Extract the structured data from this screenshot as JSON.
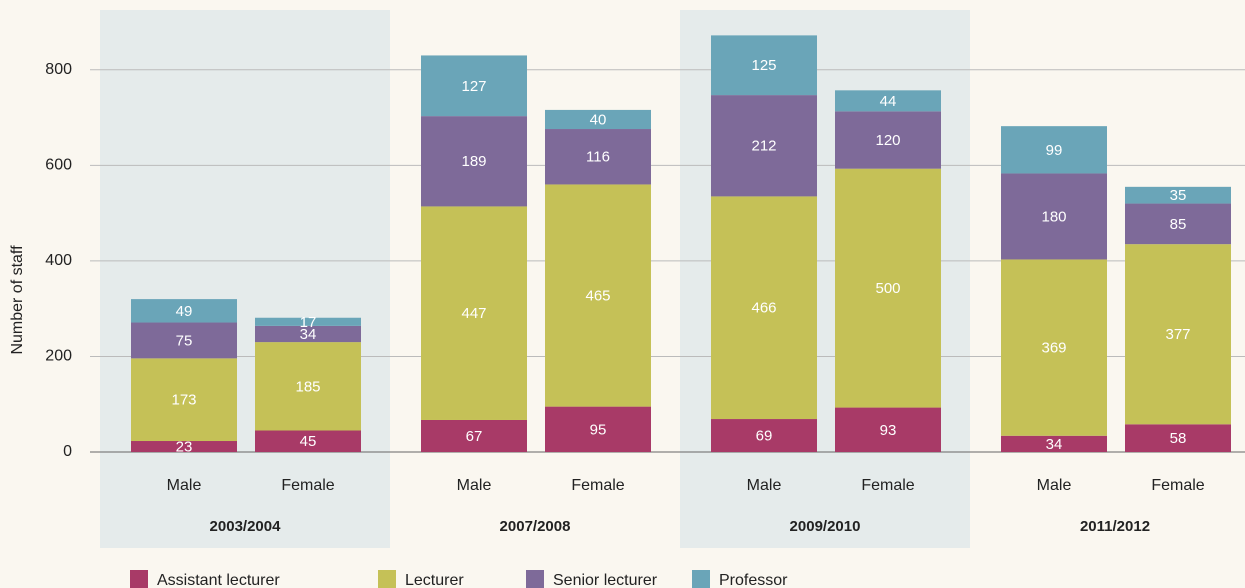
{
  "chart_data": {
    "type": "stacked_bar",
    "y_label": "Number of staff",
    "groups": [
      {
        "name": "2003/2004",
        "categories": [
          "Male",
          "Female"
        ]
      },
      {
        "name": "2007/2008",
        "categories": [
          "Male",
          "Female"
        ]
      },
      {
        "name": "2009/2010",
        "categories": [
          "Male",
          "Female"
        ]
      },
      {
        "name": "2011/2012",
        "categories": [
          "Male",
          "Female"
        ]
      }
    ],
    "series": [
      {
        "name": "Assistant lecturer",
        "color": "#a83a67",
        "values": [
          23,
          45,
          67,
          95,
          69,
          93,
          34,
          58
        ]
      },
      {
        "name": "Lecturer",
        "color": "#c5c157",
        "values": [
          173,
          185,
          447,
          465,
          466,
          500,
          369,
          377
        ]
      },
      {
        "name": "Senior lecturer",
        "color": "#7e6a99",
        "values": [
          75,
          34,
          189,
          116,
          212,
          120,
          180,
          85
        ]
      },
      {
        "name": "Professor",
        "color": "#6aa5b8",
        "values": [
          49,
          17,
          127,
          40,
          125,
          44,
          99,
          35
        ]
      }
    ],
    "ylim": [
      0,
      900
    ],
    "yticks": [
      0,
      200,
      400,
      600,
      800
    ],
    "grid": true
  }
}
